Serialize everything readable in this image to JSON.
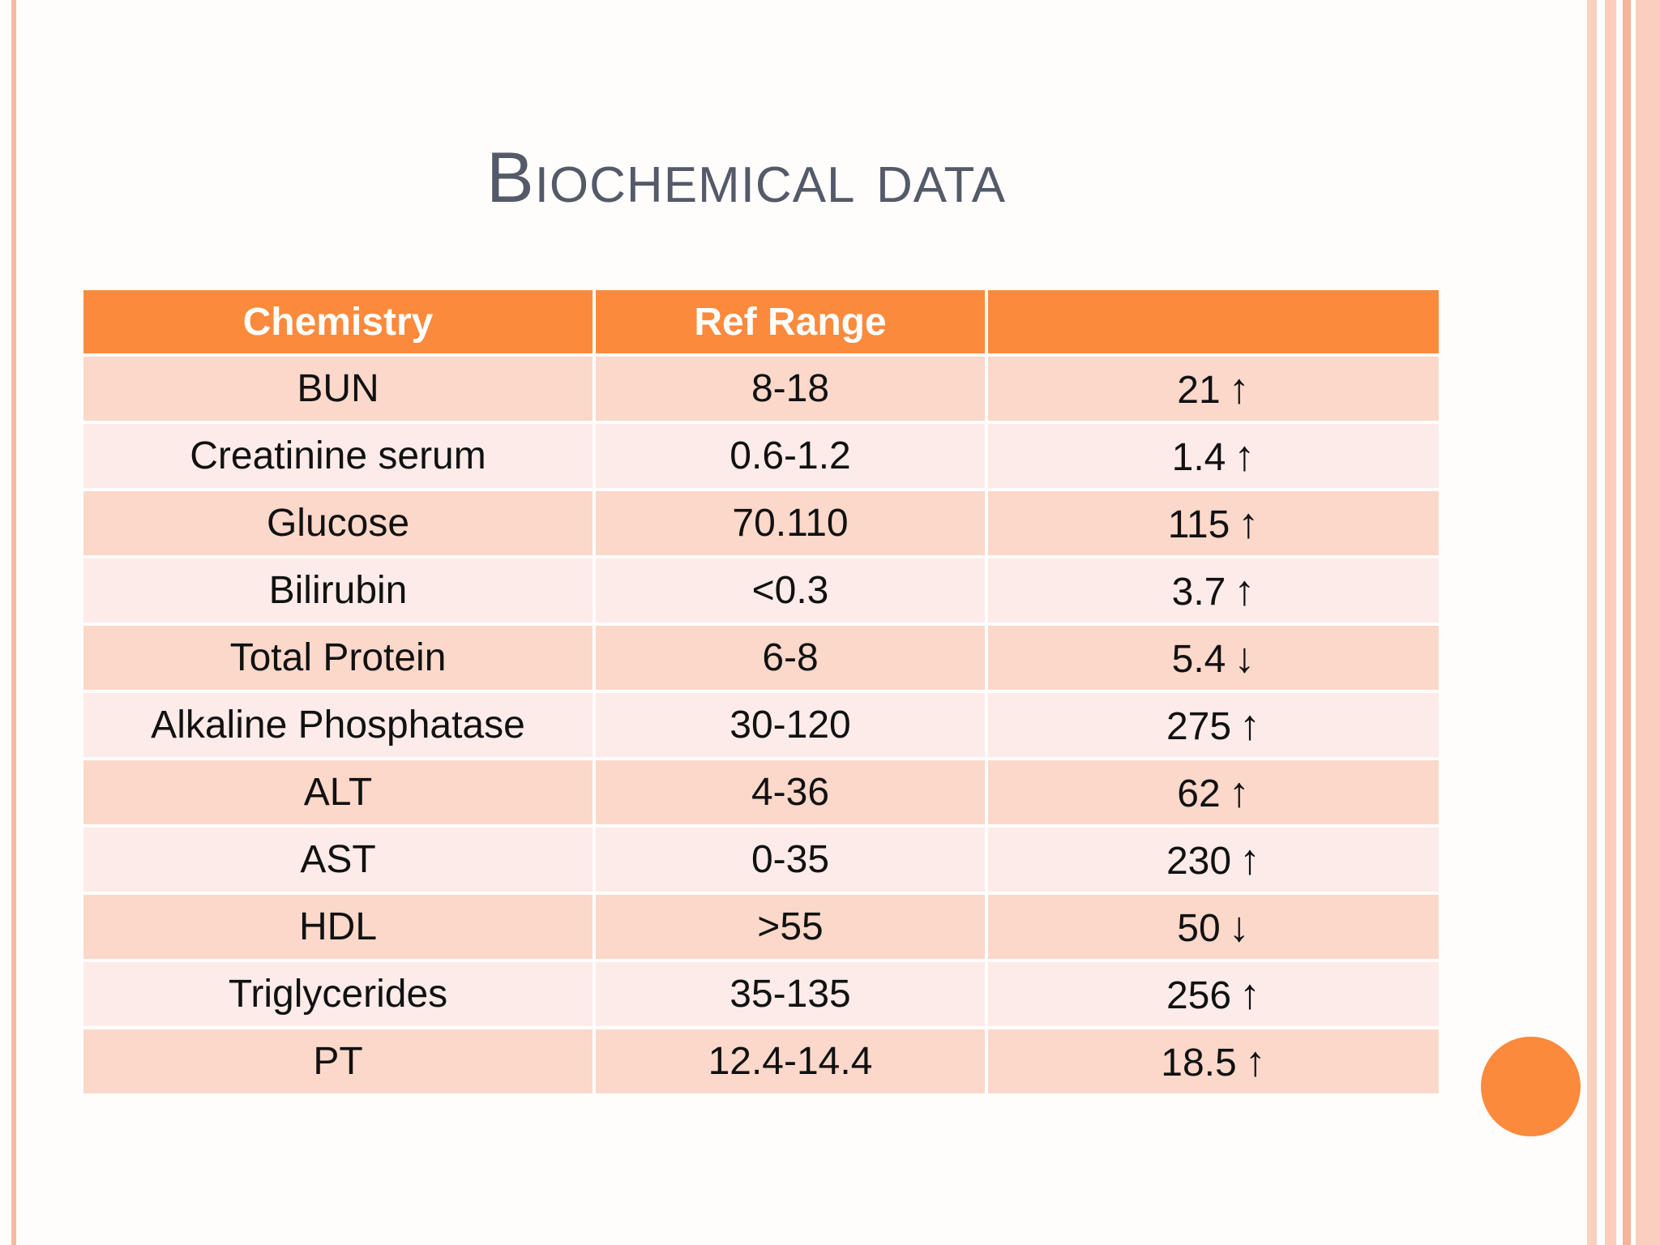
{
  "title": {
    "first_letter": "B",
    "rest": "iochemical data"
  },
  "table": {
    "headers": [
      "Chemistry",
      "Ref Range",
      ""
    ],
    "rows": [
      {
        "name": "BUN",
        "range": "8-18",
        "value": "21",
        "arrow": "↑"
      },
      {
        "name": "Creatinine serum",
        "range": "0.6-1.2",
        "value": "1.4",
        "arrow": "↑"
      },
      {
        "name": "Glucose",
        "range": "70.110",
        "value": "115",
        "arrow": "↑"
      },
      {
        "name": "Bilirubin",
        "range": "<0.3",
        "value": "3.7",
        "arrow": "↑"
      },
      {
        "name": "Total Protein",
        "range": "6-8",
        "value": "5.4",
        "arrow": "↓"
      },
      {
        "name": "Alkaline Phosphatase",
        "range": "30-120",
        "value": "275",
        "arrow": "↑"
      },
      {
        "name": "ALT",
        "range": "4-36",
        "value": "62",
        "arrow": "↑"
      },
      {
        "name": "AST",
        "range": "0-35",
        "value": "230",
        "arrow": "↑"
      },
      {
        "name": "HDL",
        "range": ">55",
        "value": "50",
        "arrow": "↓"
      },
      {
        "name": "Triglycerides",
        "range": "35-135",
        "value": "256",
        "arrow": "↑"
      },
      {
        "name": "PT",
        "range": "12.4-14.4",
        "value": "18.5",
        "arrow": "↑"
      }
    ]
  },
  "colors": {
    "accent": "#fb8a3d",
    "row_dark": "#fbd8ca",
    "row_light": "#fcebe8",
    "title": "#555a69"
  }
}
